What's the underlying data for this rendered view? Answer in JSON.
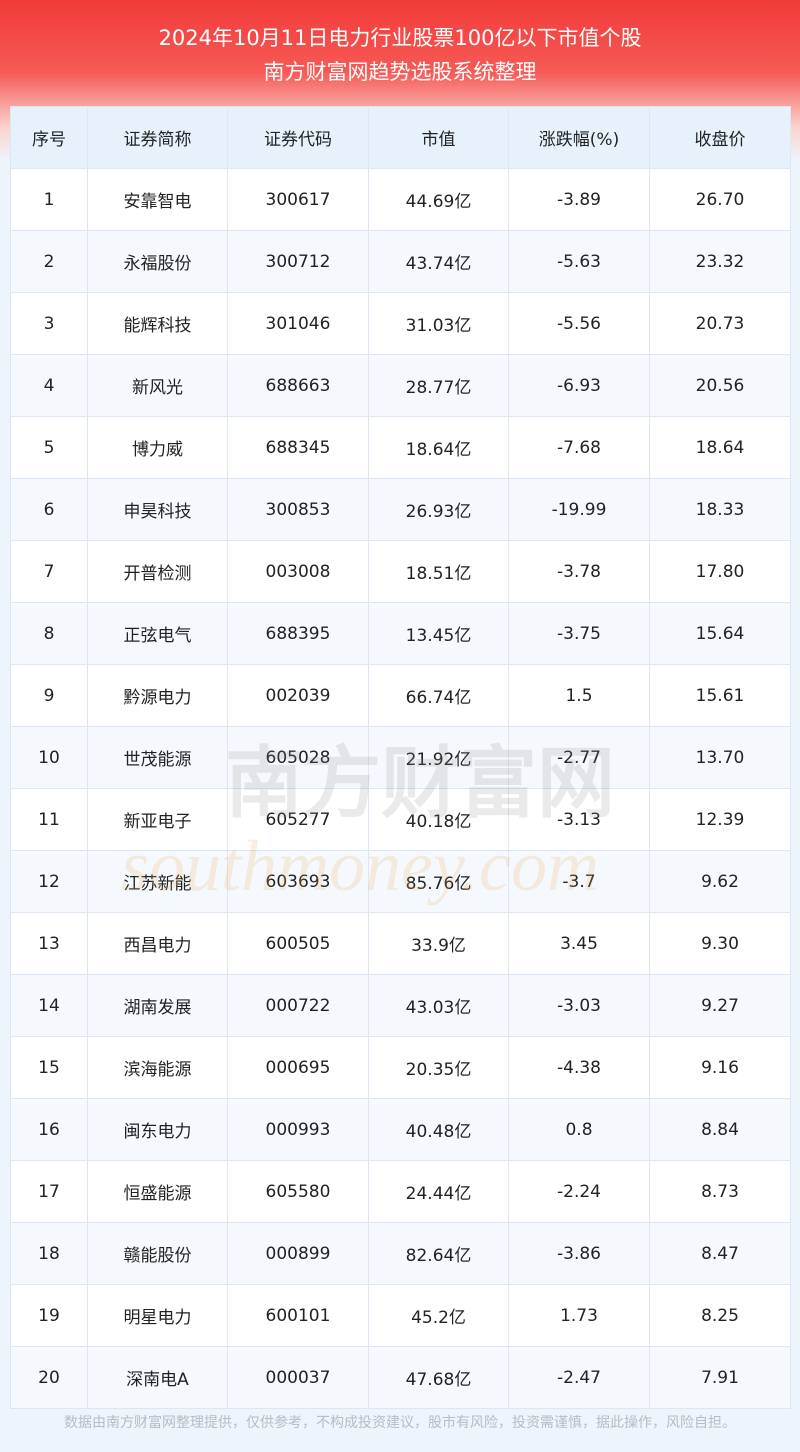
{
  "header": {
    "title": "2024年10月11日电力行业股票100亿以下市值个股",
    "subtitle": "南方财富网趋势选股系统整理"
  },
  "table": {
    "columns": [
      "序号",
      "证券简称",
      "证券代码",
      "市值",
      "涨跌幅(%)",
      "收盘价"
    ],
    "rows": [
      [
        "1",
        "安靠智电",
        "300617",
        "44.69亿",
        "-3.89",
        "26.70"
      ],
      [
        "2",
        "永福股份",
        "300712",
        "43.74亿",
        "-5.63",
        "23.32"
      ],
      [
        "3",
        "能辉科技",
        "301046",
        "31.03亿",
        "-5.56",
        "20.73"
      ],
      [
        "4",
        "新风光",
        "688663",
        "28.77亿",
        "-6.93",
        "20.56"
      ],
      [
        "5",
        "博力威",
        "688345",
        "18.64亿",
        "-7.68",
        "18.64"
      ],
      [
        "6",
        "申昊科技",
        "300853",
        "26.93亿",
        "-19.99",
        "18.33"
      ],
      [
        "7",
        "开普检测",
        "003008",
        "18.51亿",
        "-3.78",
        "17.80"
      ],
      [
        "8",
        "正弦电气",
        "688395",
        "13.45亿",
        "-3.75",
        "15.64"
      ],
      [
        "9",
        "黔源电力",
        "002039",
        "66.74亿",
        "1.5",
        "15.61"
      ],
      [
        "10",
        "世茂能源",
        "605028",
        "21.92亿",
        "-2.77",
        "13.70"
      ],
      [
        "11",
        "新亚电子",
        "605277",
        "40.18亿",
        "-3.13",
        "12.39"
      ],
      [
        "12",
        "江苏新能",
        "603693",
        "85.76亿",
        "-3.7",
        "9.62"
      ],
      [
        "13",
        "西昌电力",
        "600505",
        "33.9亿",
        "3.45",
        "9.30"
      ],
      [
        "14",
        "湖南发展",
        "000722",
        "43.03亿",
        "-3.03",
        "9.27"
      ],
      [
        "15",
        "滨海能源",
        "000695",
        "20.35亿",
        "-4.38",
        "9.16"
      ],
      [
        "16",
        "闽东电力",
        "000993",
        "40.48亿",
        "0.8",
        "8.84"
      ],
      [
        "17",
        "恒盛能源",
        "605580",
        "24.44亿",
        "-2.24",
        "8.73"
      ],
      [
        "18",
        "赣能股份",
        "000899",
        "82.64亿",
        "-3.86",
        "8.47"
      ],
      [
        "19",
        "明星电力",
        "600101",
        "45.2亿",
        "1.73",
        "8.25"
      ],
      [
        "20",
        "深南电A",
        "000037",
        "47.68亿",
        "-2.47",
        "7.91"
      ]
    ]
  },
  "watermark": {
    "brand": "南方财富网",
    "site": "southmoney.com"
  },
  "footer": {
    "disclaimer": "数据由南方财富网整理提供，仅供参考，不构成投资建议，股市有风险，投资需谨慎，据此操作，风险自担。"
  }
}
